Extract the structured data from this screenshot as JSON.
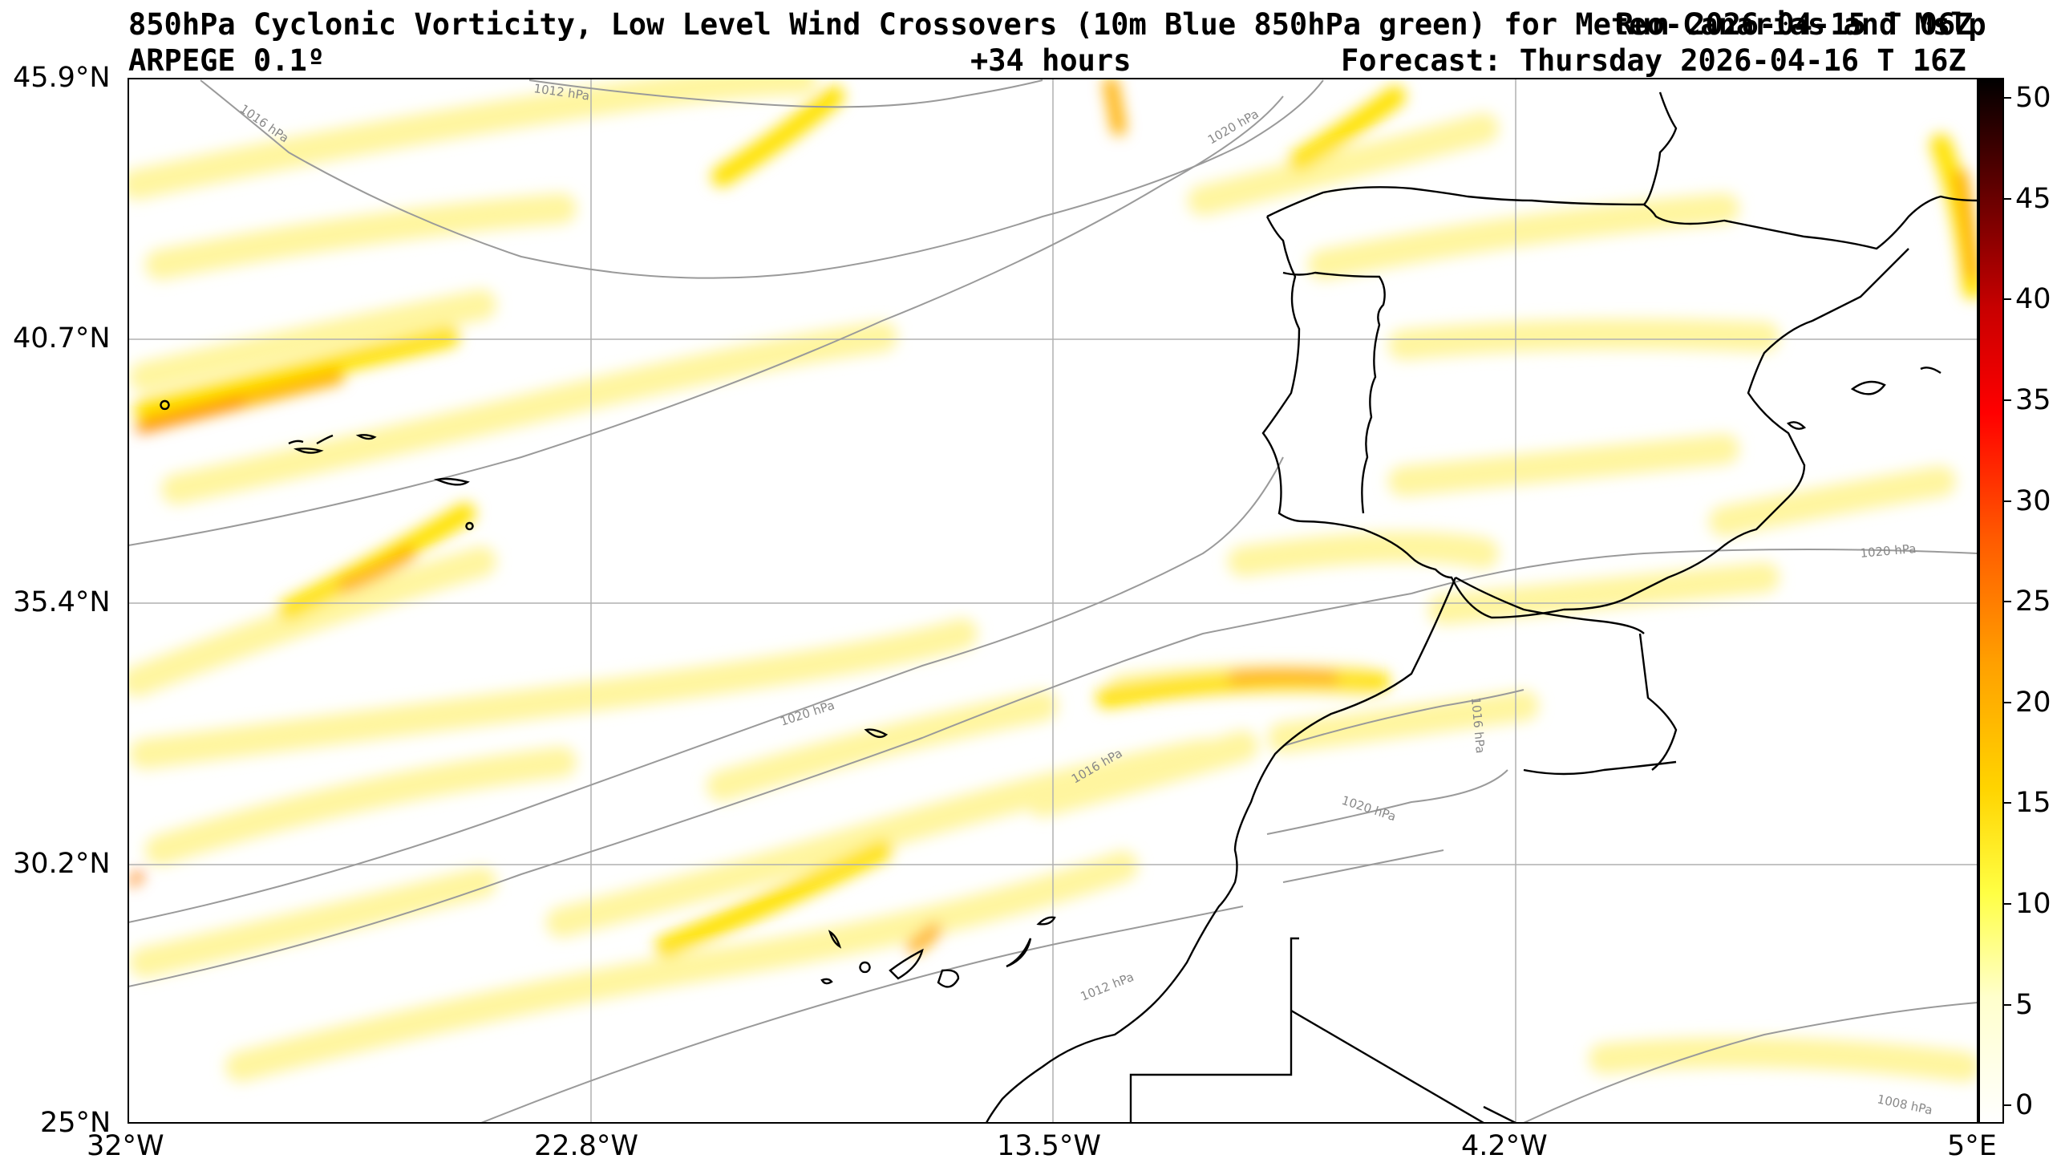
{
  "header": {
    "title_line1": "850hPa Cyclonic Vorticity, Low Level Wind Crossovers (10m Blue 850hPa green) for Meteo-Canarias and Mslp",
    "run_label": "Run 2026-04-15 T 06Z",
    "model": "ARPEGE 0.1º",
    "lead_time": "+34 hours",
    "forecast": "Forecast: Thursday 2026-04-16 T 16Z"
  },
  "map": {
    "lat_labels": [
      "45.9°N",
      "40.7°N",
      "35.4°N",
      "30.2°N",
      "25°N"
    ],
    "lon_labels": [
      "32°W",
      "22.8°W",
      "13.5°W",
      "4.2°W",
      "5°E"
    ],
    "isobar_labels": [
      "1012 hPa",
      "1016 hPa",
      "1020 hPa",
      "1020 hPa",
      "1020 hPa",
      "1016 hPa",
      "1016 hPa",
      "1020 hPa",
      "1012 hPa",
      "1008 hPa"
    ],
    "colors": {
      "isobar": "#9a9a9a",
      "coast": "#000000",
      "grid": "#b0b0b0"
    }
  },
  "colorbar": {
    "ticks": [
      "50",
      "45",
      "40",
      "35",
      "30",
      "25",
      "20",
      "15",
      "10",
      "5",
      "0"
    ],
    "colors": [
      "#ffffff",
      "#ffff99",
      "#ffff00",
      "#ffcc00",
      "#ff9900",
      "#ff6600",
      "#ff0000",
      "#cc0000",
      "#880000",
      "#440000",
      "#000000"
    ]
  }
}
